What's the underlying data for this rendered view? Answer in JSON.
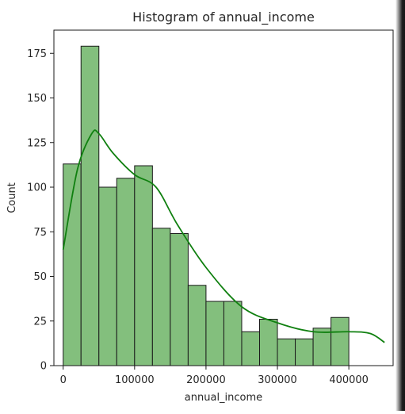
{
  "chart_data": {
    "type": "bar",
    "title": "Histogram of annual_income",
    "xlabel": "annual_income",
    "ylabel": "Count",
    "xlim": [
      -13000,
      462000
    ],
    "ylim": [
      0,
      188
    ],
    "xticks": [
      0,
      100000,
      200000,
      300000,
      400000
    ],
    "yticks": [
      0,
      25,
      50,
      75,
      100,
      125,
      150,
      175
    ],
    "bin_edges": [
      0,
      25000,
      50000,
      75000,
      100000,
      125000,
      150000,
      175000,
      200000,
      225000,
      250000,
      275000,
      300000,
      325000,
      350000,
      375000,
      400000,
      425000,
      450000
    ],
    "counts": [
      113,
      179,
      100,
      105,
      112,
      77,
      74,
      45,
      36,
      36,
      19,
      26,
      15,
      15,
      21,
      27,
      0,
      0
    ],
    "kde": {
      "x": [
        0,
        20000,
        40000,
        50000,
        70000,
        100000,
        130000,
        160000,
        200000,
        250000,
        300000,
        350000,
        400000,
        430000,
        450000
      ],
      "y": [
        65,
        110,
        130,
        130,
        119,
        107,
        100,
        79,
        55,
        33,
        24,
        19,
        19,
        18,
        13
      ]
    },
    "grid": false,
    "colors": {
      "bar_fill": "#83bf7d",
      "bar_edge": "#1a1a1a",
      "kde_line": "#108010"
    }
  }
}
